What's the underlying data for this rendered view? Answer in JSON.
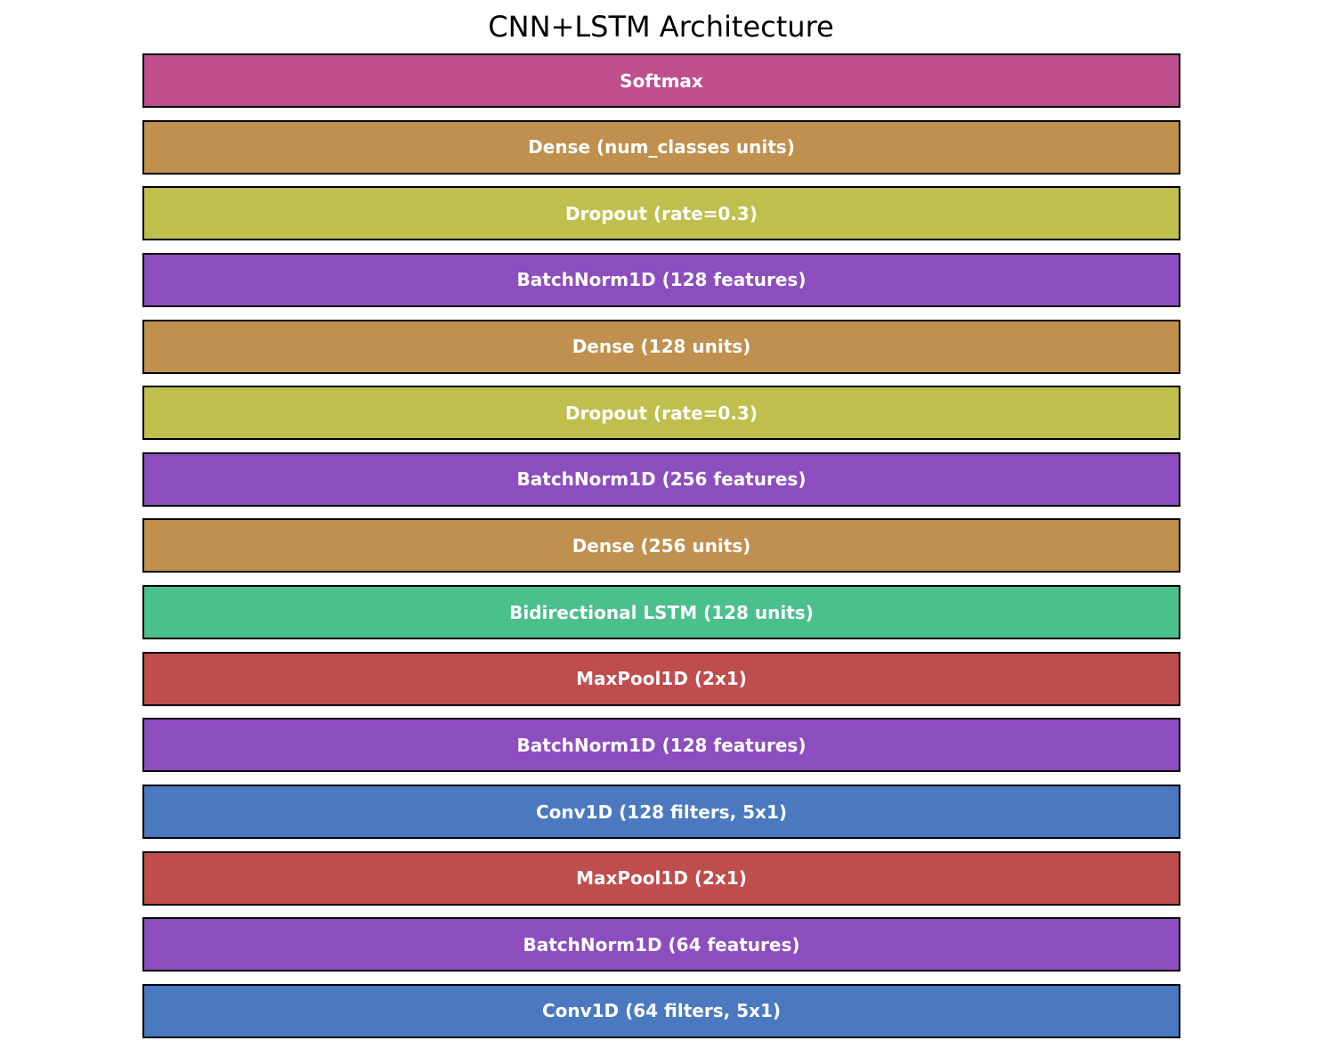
{
  "title": "CNN+LSTM Architecture",
  "colors": {
    "softmax": "#bf4f8f",
    "dense": "#bf904e",
    "dropout": "#bfbf4e",
    "batchnorm": "#8c4dbf",
    "lstm": "#4bbf8c",
    "maxpool": "#bf4d4d",
    "conv": "#4a79bf"
  },
  "layers": [
    {
      "label": "Softmax",
      "kind": "softmax"
    },
    {
      "label": "Dense (num_classes units)",
      "kind": "dense"
    },
    {
      "label": "Dropout (rate=0.3)",
      "kind": "dropout"
    },
    {
      "label": "BatchNorm1D (128 features)",
      "kind": "batchnorm"
    },
    {
      "label": "Dense (128 units)",
      "kind": "dense"
    },
    {
      "label": "Dropout (rate=0.3)",
      "kind": "dropout"
    },
    {
      "label": "BatchNorm1D (256 features)",
      "kind": "batchnorm"
    },
    {
      "label": "Dense (256 units)",
      "kind": "dense"
    },
    {
      "label": "Bidirectional LSTM (128 units)",
      "kind": "lstm"
    },
    {
      "label": "MaxPool1D (2x1)",
      "kind": "maxpool"
    },
    {
      "label": "BatchNorm1D (128 features)",
      "kind": "batchnorm"
    },
    {
      "label": "Conv1D (128 filters, 5x1)",
      "kind": "conv"
    },
    {
      "label": "MaxPool1D (2x1)",
      "kind": "maxpool"
    },
    {
      "label": "BatchNorm1D (64 features)",
      "kind": "batchnorm"
    },
    {
      "label": "Conv1D (64 filters, 5x1)",
      "kind": "conv"
    }
  ]
}
